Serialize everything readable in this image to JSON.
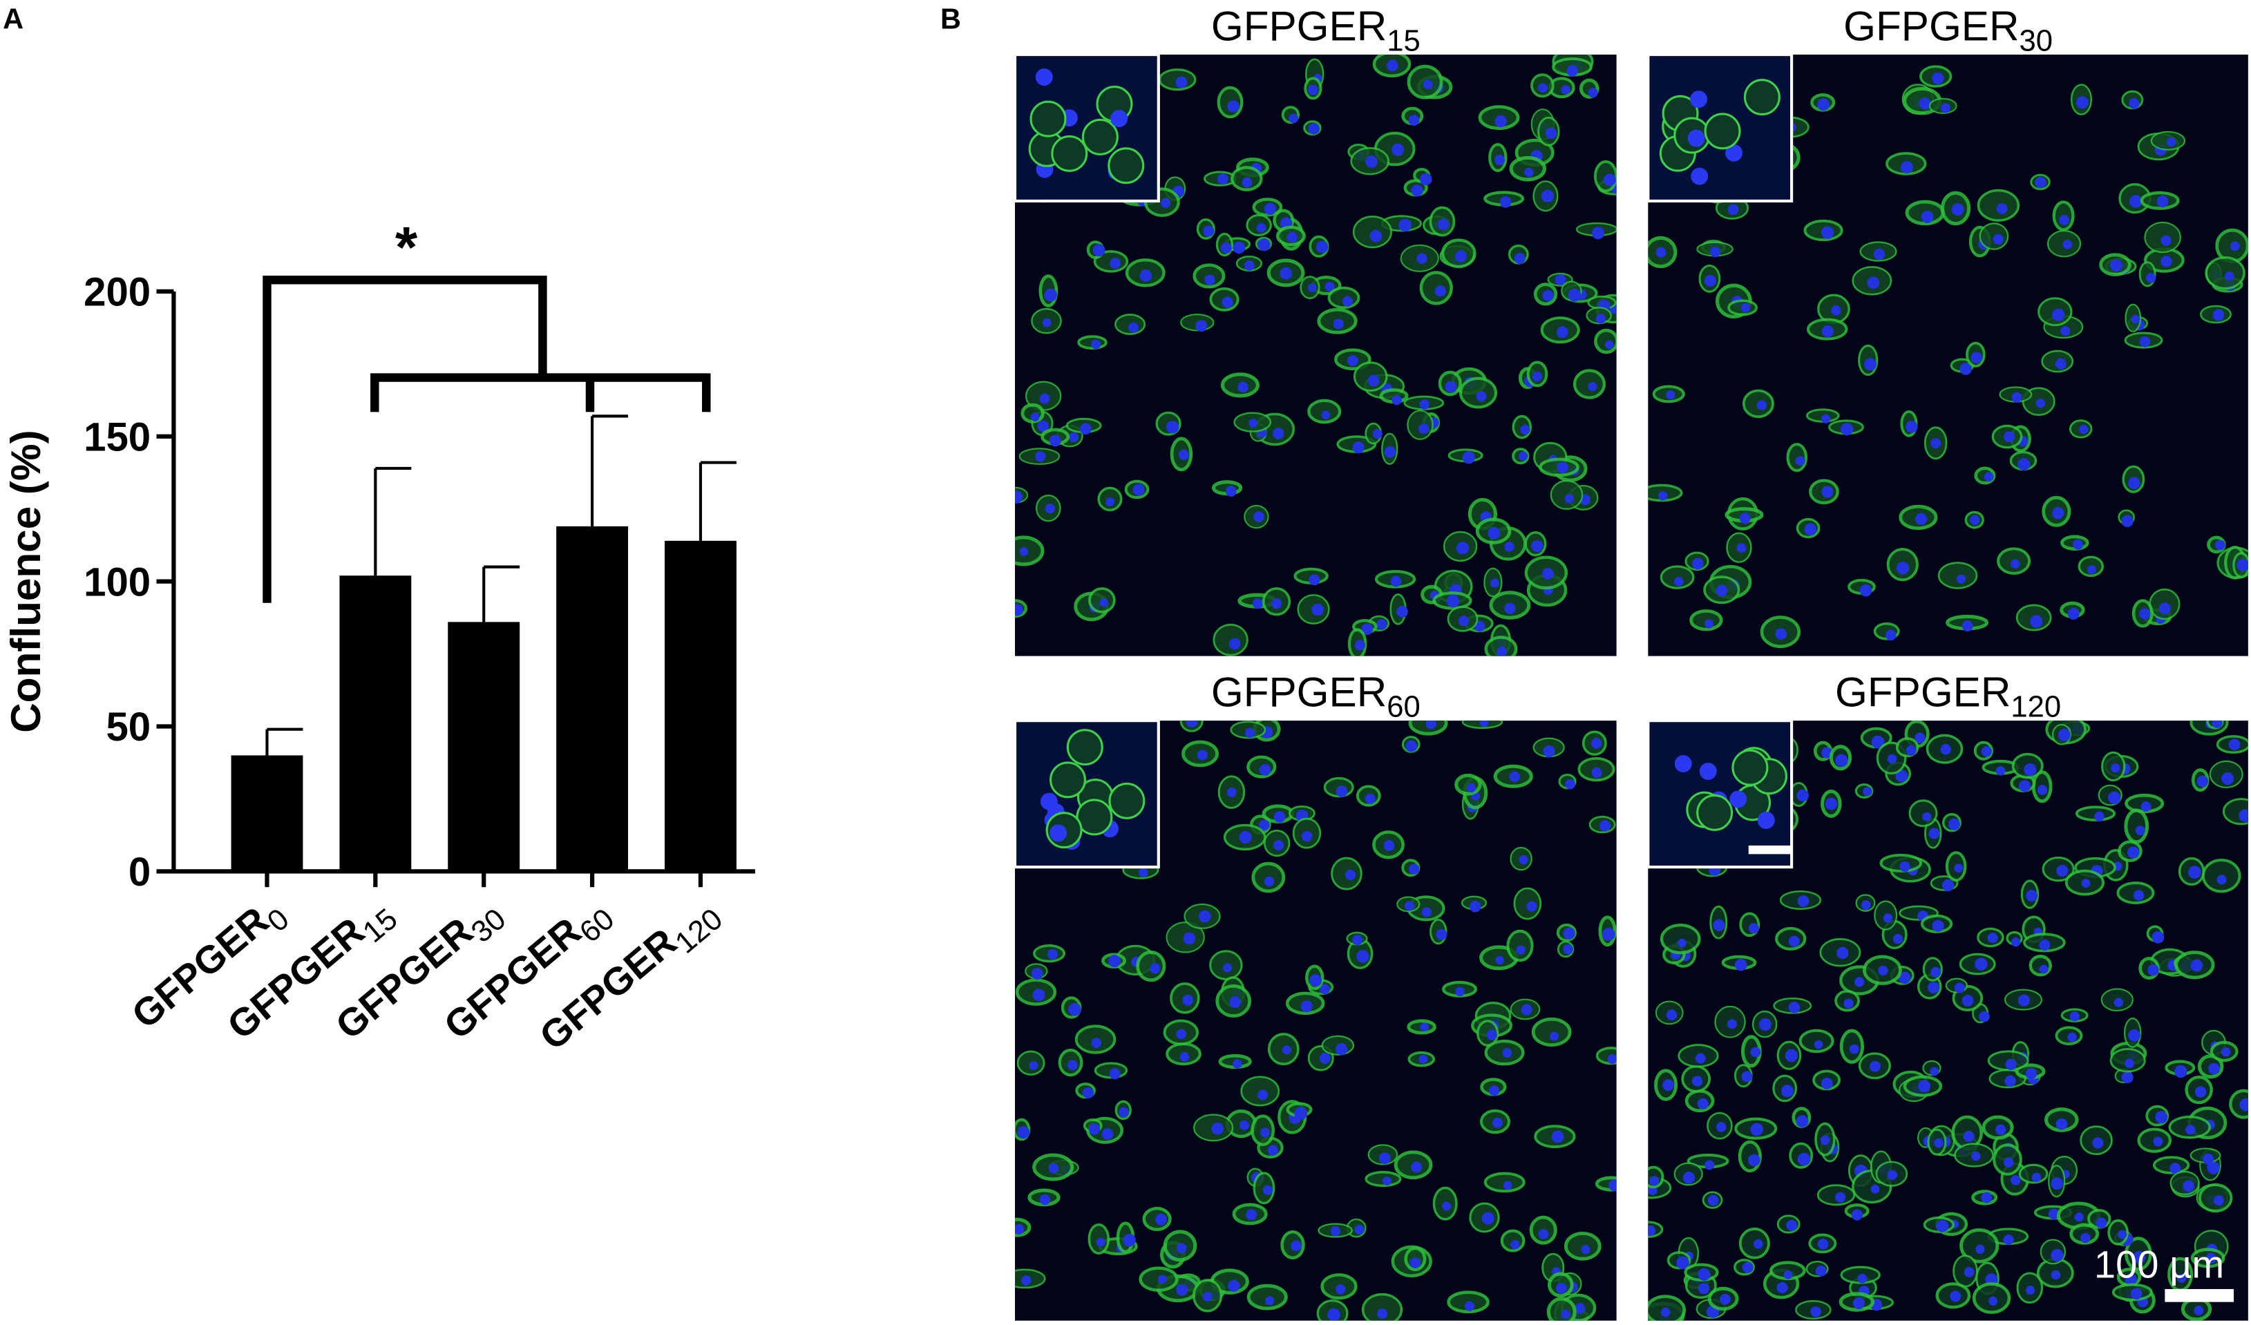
{
  "chart_data": {
    "type": "bar",
    "panel_label": "A",
    "y_label": "Confluence (%)",
    "categories": [
      "GFPGER0",
      "GFPGER15",
      "GFPGER30",
      "GFPGER60",
      "GFPGER120"
    ],
    "values": [
      40,
      102,
      86,
      119,
      114
    ],
    "errors": [
      9,
      37,
      19,
      38,
      27
    ],
    "color": "#000000",
    "ylim": [
      0,
      200
    ],
    "yticks": [
      0,
      50,
      100,
      150,
      200
    ],
    "significance": "*"
  },
  "micrographs": {
    "panel_label": "B",
    "titles": [
      "GFPGER15",
      "GFPGER30",
      "GFPGER60",
      "GFPGER120"
    ],
    "scale_bar": "100 µm"
  }
}
